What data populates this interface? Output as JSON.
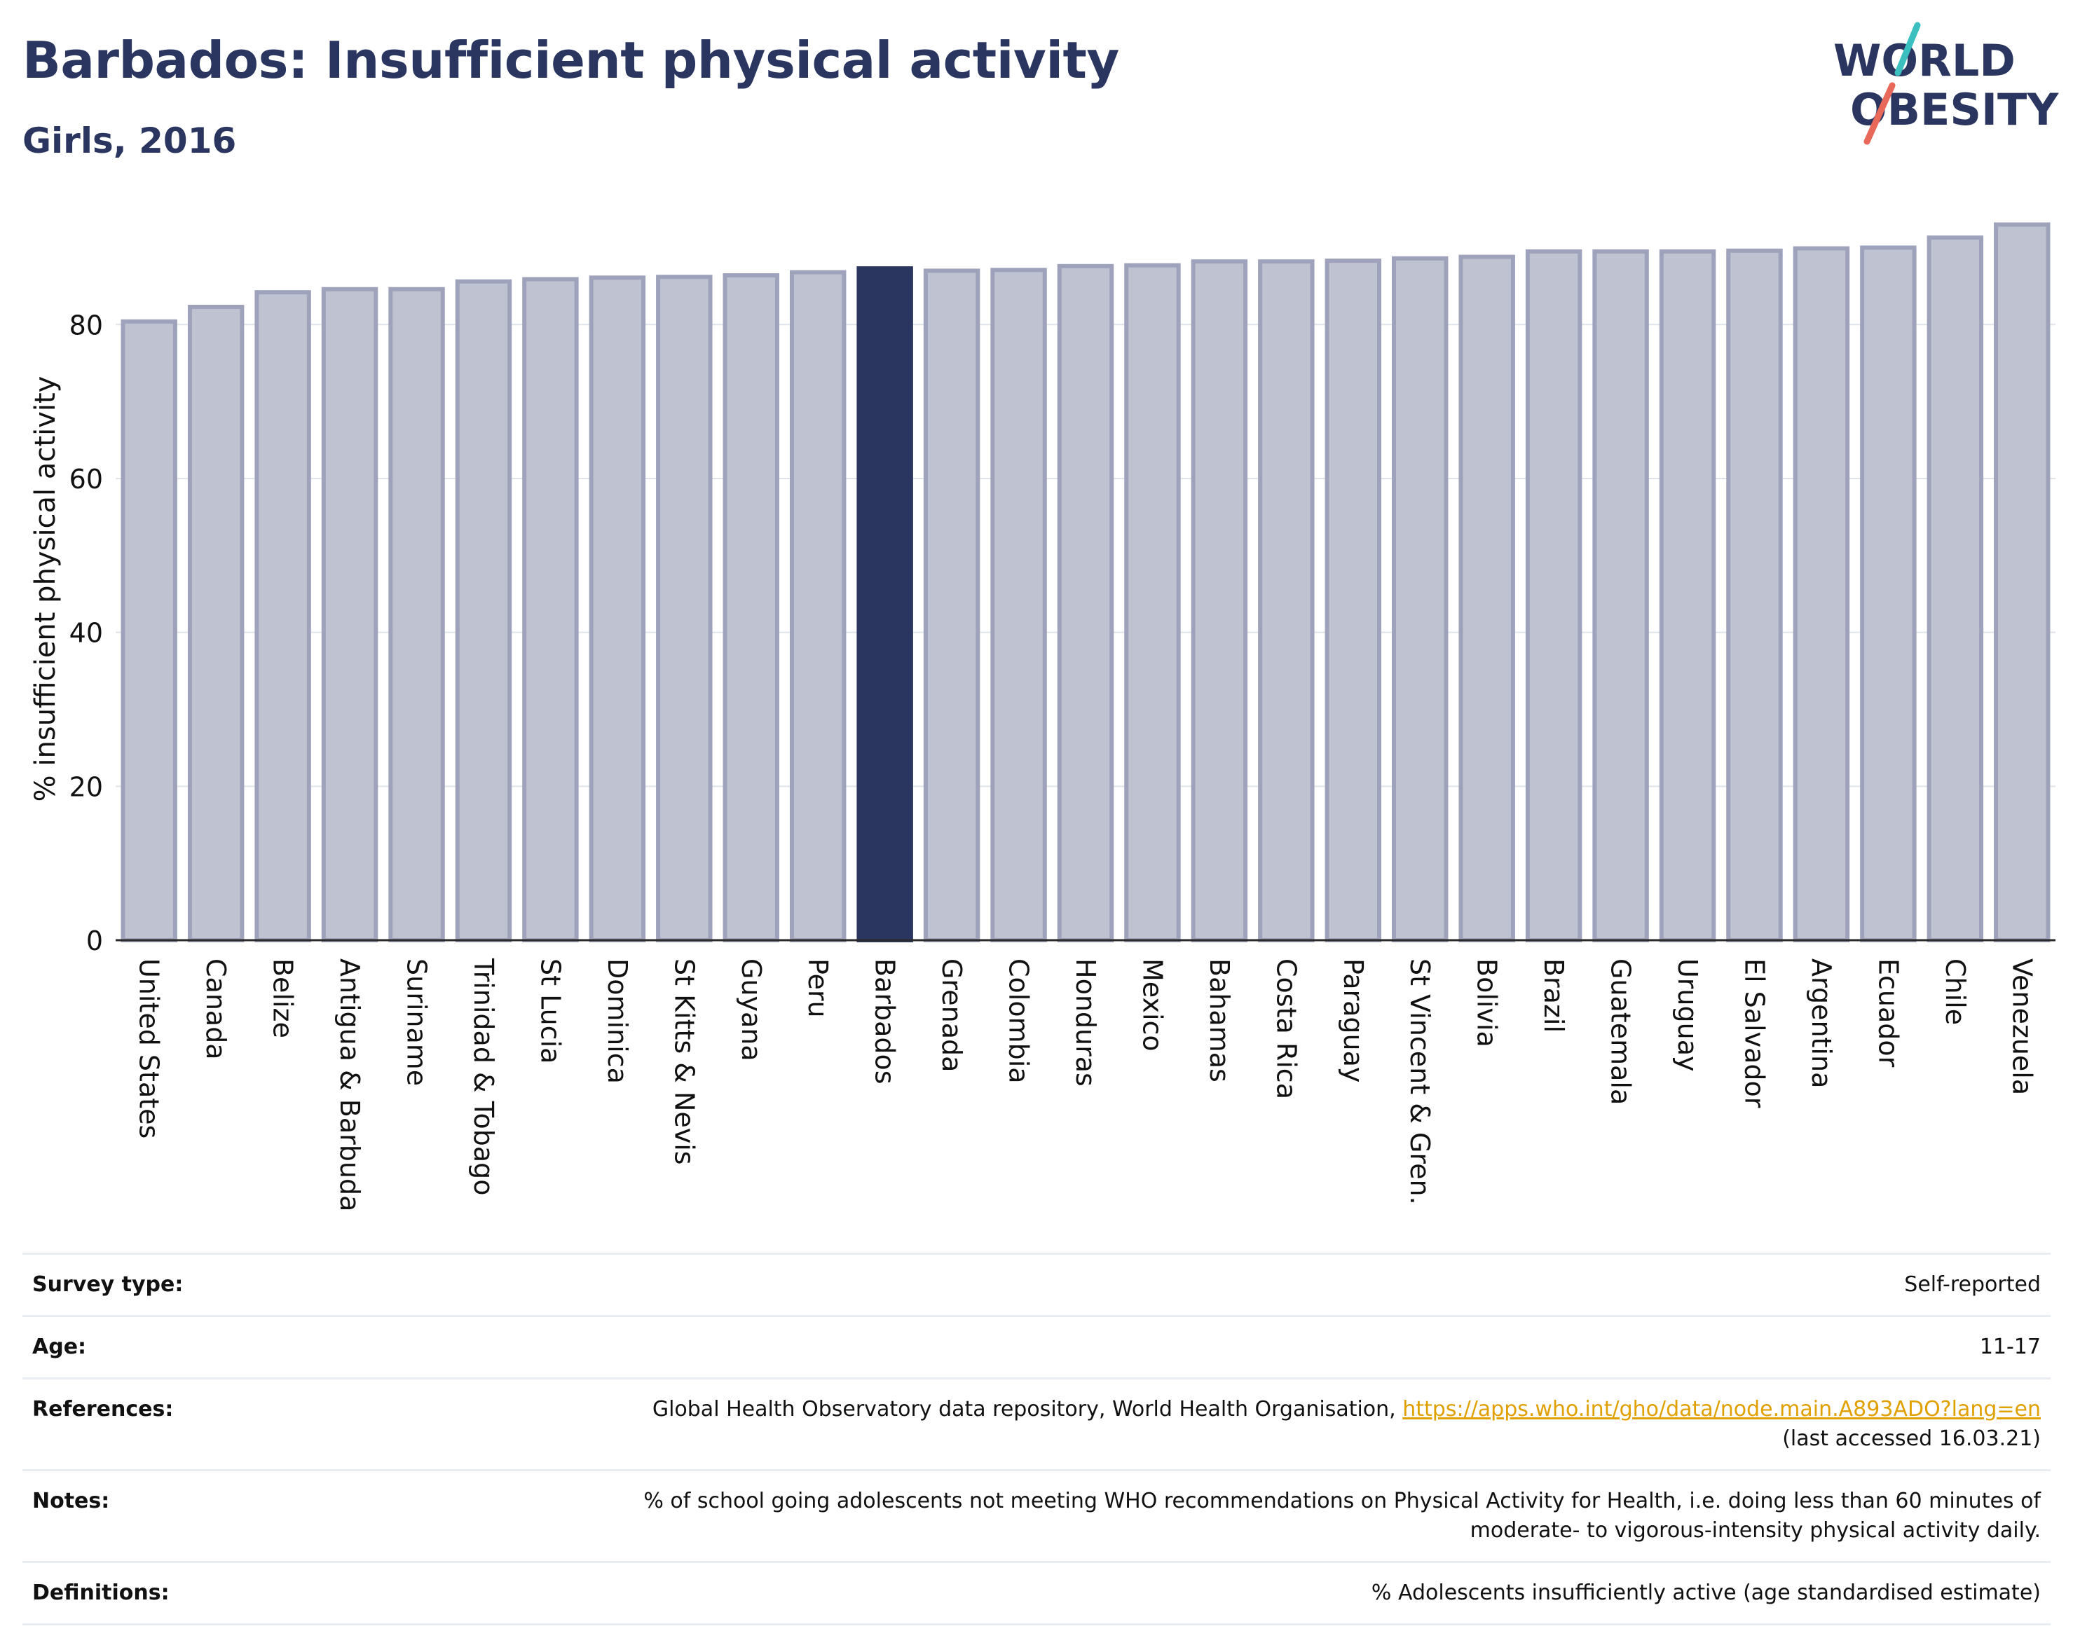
{
  "header": {
    "title": "Barbados: Insufficient physical activity",
    "subtitle": "Girls, 2016"
  },
  "logo": {
    "line1": "WORLD",
    "line2": "OBESITY"
  },
  "colors": {
    "highlight_bar": "#2a3560",
    "bar_fill": "#bfc2d0",
    "bar_stroke": "#9ea3bb",
    "title": "#2a3560",
    "logo_text": "#2a3560",
    "logo_teal": "#3bbfbf",
    "logo_coral": "#e8685a",
    "link": "#e0a100"
  },
  "chart_data": {
    "type": "bar",
    "ylabel": "% insufficient physical activity",
    "xlabel": "",
    "ylim": [
      0,
      93.5
    ],
    "yticks": [
      0,
      20,
      40,
      60,
      80
    ],
    "grid": true,
    "highlight": "Barbados",
    "categories": [
      "United States",
      "Canada",
      "Belize",
      "Antigua & Barbuda",
      "Suriname",
      "Trinidad & Tobago",
      "St Lucia",
      "Dominica",
      "St Kitts & Nevis",
      "Guyana",
      "Peru",
      "Barbados",
      "Grenada",
      "Colombia",
      "Honduras",
      "Mexico",
      "Bahamas",
      "Costa Rica",
      "Paraguay",
      "St Vincent & Gren.",
      "Bolivia",
      "Brazil",
      "Guatemala",
      "Uruguay",
      "El Salvador",
      "Argentina",
      "Ecuador",
      "Chile",
      "Venezuela"
    ],
    "values": [
      80.4,
      82.3,
      84.2,
      84.6,
      84.6,
      85.6,
      85.9,
      86.1,
      86.2,
      86.4,
      86.8,
      87.3,
      87.0,
      87.1,
      87.6,
      87.7,
      88.2,
      88.2,
      88.3,
      88.6,
      88.8,
      89.5,
      89.5,
      89.5,
      89.6,
      89.9,
      90.0,
      91.3,
      93.0
    ]
  },
  "metadata": [
    {
      "key": "Survey type:",
      "value": "Self-reported"
    },
    {
      "key": "Age:",
      "value": "11-17"
    },
    {
      "key": "References:",
      "value": "Global Health Observatory data repository, World Health Organisation,",
      "link": "https://apps.who.int/gho/data/node.main.A893ADO?lang=en",
      "value2": "(last accessed 16.03.21)"
    },
    {
      "key": "Notes:",
      "value": "% of school going adolescents not meeting WHO recommendations on Physical Activity for Health, i.e. doing less than 60 minutes of",
      "value2": "moderate- to vigorous-intensity physical activity daily."
    },
    {
      "key": "Definitions:",
      "value": "% Adolescents insufficiently active (age standardised estimate)"
    }
  ]
}
